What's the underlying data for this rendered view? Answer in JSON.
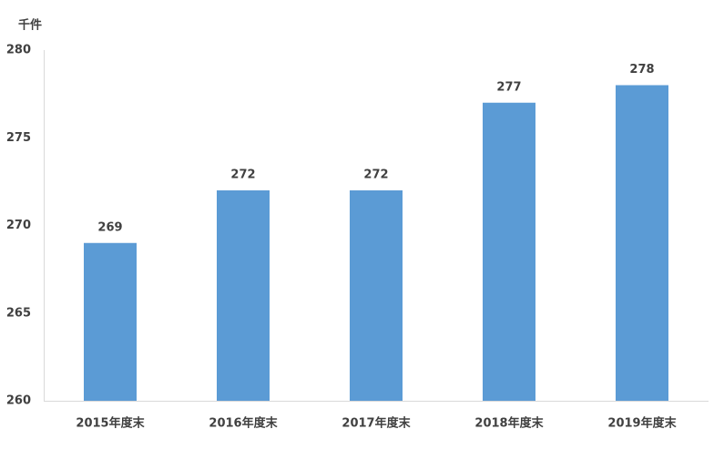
{
  "chart_data": {
    "type": "bar",
    "y_label": "千件",
    "categories": [
      "2015年度末",
      "2016年度末",
      "2017年度末",
      "2018年度末",
      "2019年度末"
    ],
    "values": [
      269,
      272,
      272,
      277,
      278
    ],
    "color": "#5b9bd5",
    "ylim": [
      260,
      280
    ],
    "yticks": [
      260,
      265,
      270,
      275,
      280
    ],
    "grid": false,
    "data_labels": true
  }
}
